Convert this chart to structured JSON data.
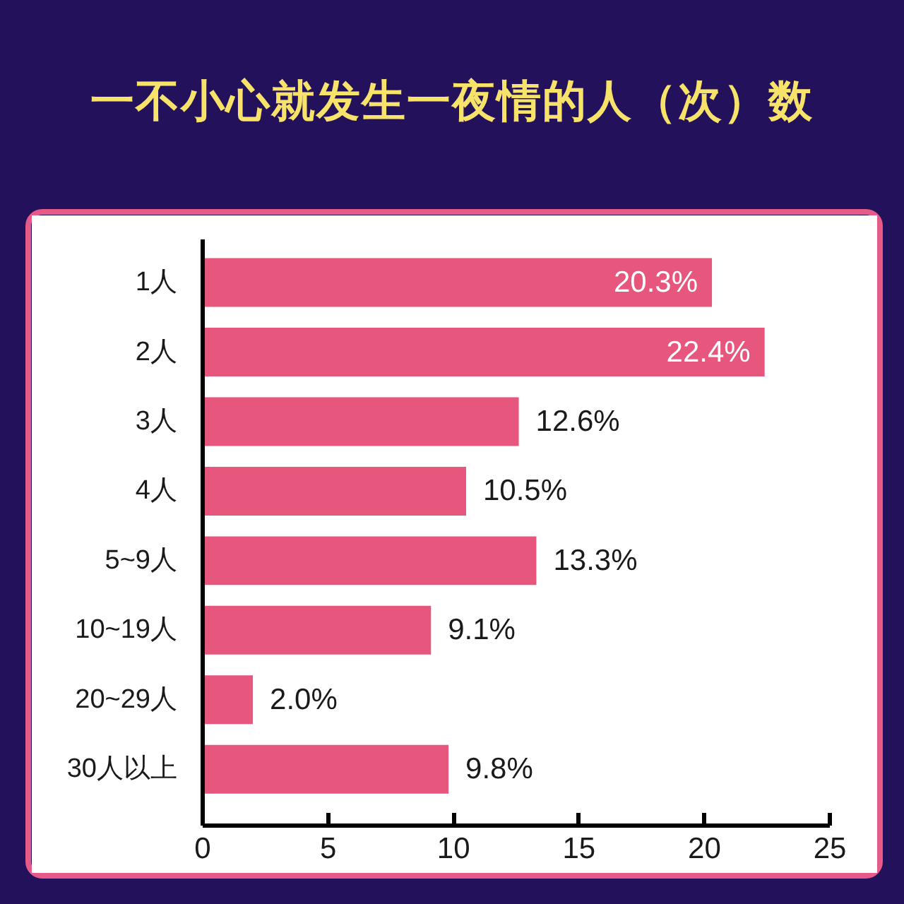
{
  "chart_data": {
    "type": "bar",
    "orientation": "horizontal",
    "title": "一不小心就发生一夜情的人（次）数",
    "categories": [
      "1人",
      "2人",
      "3人",
      "4人",
      "5~9人",
      "10~19人",
      "20~29人",
      "30人以上"
    ],
    "values": [
      20.3,
      22.4,
      12.6,
      10.5,
      13.3,
      9.1,
      2.0,
      9.8
    ],
    "value_labels": [
      "20.3%",
      "22.4%",
      "12.6%",
      "10.5%",
      "13.3%",
      "9.1%",
      "2.0%",
      "9.8%"
    ],
    "color": "#e6567d",
    "xlim": [
      0,
      25
    ],
    "xticks": [
      0,
      5,
      10,
      15,
      20,
      25
    ],
    "grid": false
  }
}
